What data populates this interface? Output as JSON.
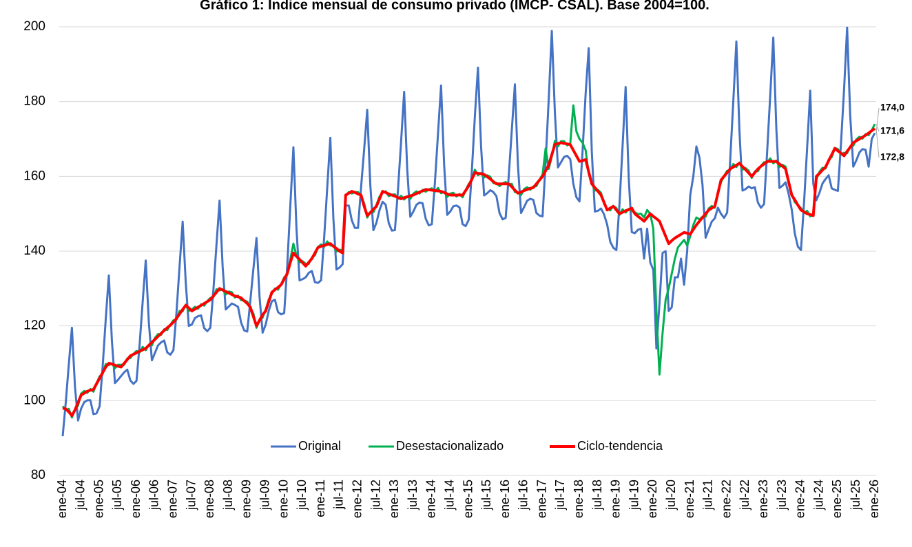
{
  "chart_data": {
    "type": "line",
    "title": "Gráfico 1: Índice mensual de consumo privado (IMCP- CSAL). Base 2004=100.",
    "categories": [
      "ene-04",
      null,
      null,
      null,
      null,
      null,
      "jul-04",
      null,
      null,
      null,
      null,
      null,
      "ene-05",
      null,
      null,
      null,
      null,
      null,
      "jul-05",
      null,
      null,
      null,
      null,
      null,
      "ene-06",
      null,
      null,
      null,
      null,
      null,
      "jul-06",
      null,
      null,
      null,
      null,
      null,
      "ene-07",
      null,
      null,
      null,
      null,
      null,
      "jul-07",
      null,
      null,
      null,
      null,
      null,
      "ene-08",
      null,
      null,
      null,
      null,
      null,
      "jul-08",
      null,
      null,
      null,
      null,
      null,
      "ene-09",
      null,
      null,
      null,
      null,
      null,
      "jul-09",
      null,
      null,
      null,
      null,
      null,
      "ene-10",
      null,
      null,
      null,
      null,
      null,
      "jul-10",
      null,
      null,
      null,
      null,
      null,
      "ene-11",
      null,
      null,
      null,
      null,
      null,
      "jul-11",
      null,
      null,
      null,
      null,
      null,
      "ene-12",
      null,
      null,
      null,
      null,
      null,
      "jul-12",
      null,
      null,
      null,
      null,
      null,
      "ene-13",
      null,
      null,
      null,
      null,
      null,
      "jul-13",
      null,
      null,
      null,
      null,
      null,
      "ene-14",
      null,
      null,
      null,
      null,
      null,
      "jul-14",
      null,
      null,
      null,
      null,
      null,
      "ene-15",
      null,
      null,
      null,
      null,
      null,
      "jul-15",
      null,
      null,
      null,
      null,
      null,
      "ene-16",
      null,
      null,
      null,
      null,
      null,
      "jul-16",
      null,
      null,
      null,
      null,
      null,
      "ene-17",
      null,
      null,
      null,
      null,
      null,
      "jul-17",
      null,
      null,
      null,
      null,
      null,
      "ene-18",
      null,
      null,
      null,
      null,
      null,
      "jul-18",
      null,
      null,
      null,
      null,
      null,
      "ene-19",
      null,
      null,
      null,
      null,
      null,
      "jul-19",
      null,
      null,
      null,
      null,
      null,
      "ene-20",
      null,
      null,
      null,
      null,
      null,
      "jul-20",
      null,
      null,
      null,
      null,
      null,
      "ene-21",
      null,
      null,
      null,
      null,
      null,
      "jul-21",
      null,
      null,
      null,
      null,
      null,
      "ene-22",
      null,
      null,
      null,
      null,
      null,
      "jul-22",
      null,
      null,
      null,
      null,
      null,
      "ene-23",
      null,
      null,
      null,
      null,
      null,
      "jul-23",
      null,
      null,
      null,
      null,
      null,
      "ene-24",
      null,
      null,
      null,
      null,
      null,
      "jul-24",
      null,
      null,
      null,
      null,
      null,
      "ene-25",
      null,
      null,
      null,
      null,
      null,
      "jul-25",
      null,
      null,
      null,
      null,
      null,
      "ene-26"
    ],
    "series": [
      {
        "name": "Original",
        "color": "#4472c4",
        "width": 3,
        "values": [
          90.5,
          99.5,
          109.8,
          119.5,
          103.7,
          94.7,
          97.9,
          99.6,
          100.1,
          100.1,
          96.4,
          96.6,
          98.5,
          109.2,
          121.8,
          133.5,
          116,
          104.7,
          105.6,
          106.6,
          107.6,
          108.3,
          105.4,
          104.5,
          105.3,
          114.9,
          126.4,
          137.5,
          121,
          110.8,
          112.8,
          114.8,
          115.6,
          116.1,
          112.9,
          112.3,
          113.5,
          123.7,
          136,
          147.9,
          131.7,
          120,
          120.4,
          122.1,
          122.6,
          122.8,
          119.4,
          118.6,
          119.5,
          129.7,
          141.8,
          153.5,
          135.8,
          124.4,
          125.2,
          126,
          125.6,
          125.1,
          120.9,
          118.8,
          118.5,
          126.7,
          135.3,
          143.5,
          127.7,
          118.2,
          120.4,
          124.1,
          126.6,
          127,
          123.7,
          123.1,
          123.4,
          136.1,
          152.2,
          167.8,
          146,
          132.2,
          132.5,
          133,
          134.2,
          134.7,
          131.7,
          131.5,
          132.2,
          143.6,
          157,
          170.3,
          148.7,
          135.1,
          135.6,
          136.5,
          152.2,
          152.2,
          148.2,
          146.2,
          146.2,
          157.1,
          167.2,
          177.8,
          157.7,
          145.6,
          147.6,
          151,
          153.2,
          152.4,
          147.5,
          145.5,
          145.6,
          156.4,
          169.2,
          182.6,
          161.9,
          149.2,
          150.6,
          152.4,
          153,
          152.8,
          148.7,
          146.9,
          147.2,
          158.3,
          171.3,
          184.3,
          163.1,
          149.7,
          150.6,
          152,
          152.2,
          151.7,
          147.2,
          146.7,
          148.4,
          161.3,
          176.2,
          189.1,
          168.1,
          154.9,
          155.5,
          156.3,
          155.8,
          154.7,
          150.2,
          148.5,
          148.9,
          160.1,
          172.4,
          184.6,
          162.9,
          150.2,
          151.8,
          153.5,
          154,
          153.7,
          150.2,
          149.5,
          149.3,
          164,
          180.6,
          198.9,
          177.1,
          162.4,
          163.8,
          165.2,
          165.5,
          164.6,
          158,
          154.4,
          153.3,
          166.7,
          182.1,
          194.3,
          166.6,
          150.6,
          150.8,
          151.4,
          149.8,
          147.1,
          142.5,
          140.9,
          140.3,
          152.5,
          168,
          183.9,
          159.7,
          145.1,
          144.8,
          145.7,
          146,
          138,
          146,
          137,
          135,
          114,
          126,
          139.5,
          140,
          124,
          125,
          133,
          133,
          138,
          131,
          140,
          155,
          160,
          168,
          165,
          157.6,
          143.6,
          145.8,
          147.9,
          148.8,
          151.6,
          150,
          148.9,
          150.3,
          164.5,
          180.1,
          196.1,
          172.1,
          156.2,
          156.6,
          157.3,
          156.8,
          157.1,
          153,
          151.6,
          152.6,
          166.5,
          181.6,
          197.1,
          172.6,
          156.9,
          157.5,
          158.4,
          155.3,
          151.1,
          144.7,
          141.2,
          140.3,
          153,
          167.6,
          182.9,
          158.1,
          153.6,
          155.6,
          158.1,
          159.3,
          160.3,
          156.8,
          156.4,
          156.1,
          168.7,
          183.1,
          199.8,
          176.4,
          162.6,
          164.3,
          166.4,
          167.3,
          167.1,
          162.6,
          170,
          171.6
        ]
      },
      {
        "name": "Desestacionalizado",
        "color": "#00b050",
        "width": 3,
        "values": [
          98.5,
          97.5,
          97.8,
          95.5,
          97.7,
          98.7,
          101.9,
          102.6,
          102.1,
          103.1,
          102.4,
          104.6,
          106.5,
          107.2,
          109.8,
          109.5,
          110,
          108.7,
          109.6,
          109.6,
          109.6,
          111.3,
          111.4,
          112.5,
          113.3,
          112.9,
          114.4,
          113.5,
          115,
          114.8,
          116.8,
          117.8,
          117.6,
          119.1,
          118.9,
          120.3,
          121.5,
          121.7,
          124,
          123.9,
          125.7,
          124,
          124.4,
          125.1,
          124.6,
          125.8,
          125.4,
          126.6,
          127.5,
          127.7,
          129.8,
          129.5,
          129.8,
          128.4,
          129.2,
          129,
          127.6,
          128.1,
          126.9,
          126.8,
          126.5,
          124.7,
          123.3,
          119.5,
          121.7,
          122.2,
          124.4,
          127.1,
          128.6,
          130,
          129.7,
          131.1,
          133,
          133.7,
          137.8,
          142,
          138.8,
          137,
          137.3,
          136.6,
          136.6,
          138.3,
          138.9,
          141.1,
          141.8,
          141.2,
          142.6,
          141.5,
          141.5,
          139.9,
          140.4,
          140.1,
          154.6,
          155.8,
          155.4,
          155.8,
          155.8,
          154.7,
          152.8,
          149,
          150.5,
          150.4,
          152.4,
          154.6,
          155.6,
          156,
          154.7,
          155.1,
          155.2,
          154,
          154.8,
          153.8,
          154.7,
          154,
          155.4,
          156,
          155.4,
          156.4,
          155.9,
          156.5,
          156.8,
          155.9,
          156.9,
          155.5,
          155.9,
          154.5,
          155.4,
          155.6,
          154.6,
          155.3,
          154.4,
          156.3,
          158,
          158.9,
          161.8,
          160.3,
          160.9,
          159.7,
          160.3,
          159.9,
          158.2,
          158.3,
          157.4,
          158.1,
          158.5,
          157.7,
          158,
          155.8,
          155.7,
          155,
          156.6,
          157.1,
          156.4,
          157.3,
          157.4,
          159.1,
          160.5,
          167.5,
          162,
          165.3,
          169.5,
          168,
          169.4,
          169.4,
          168.3,
          168.8,
          179,
          172,
          170,
          169,
          167,
          160.7,
          158.2,
          156.2,
          156.4,
          155.6,
          152.6,
          151.3,
          150.9,
          152.1,
          151.5,
          149.7,
          151.2,
          150.3,
          151.3,
          150.7,
          150.4,
          149.9,
          150,
          149,
          151,
          150,
          146,
          124,
          107,
          118,
          127,
          130,
          134,
          138,
          141,
          142,
          143,
          141.5,
          144,
          147,
          149,
          148.5,
          149.2,
          149.2,
          151.4,
          152.1,
          151.6,
          155.8,
          158.4,
          160.1,
          161.5,
          161.7,
          163.3,
          162.5,
          163.7,
          161.8,
          162.2,
          161.5,
          159.6,
          161.3,
          161.4,
          162.8,
          163.8,
          163.7,
          164.8,
          163.5,
          164.2,
          162.5,
          163.1,
          162.6,
          158.1,
          155.3,
          153.1,
          152.4,
          151.5,
          150.2,
          150.8,
          149.3,
          149.7,
          159.2,
          161.2,
          162.3,
          162.1,
          164.5,
          165.2,
          167.6,
          167.3,
          165.9,
          166.3,
          166.2,
          168,
          168.2,
          169.9,
          170.6,
          170.1,
          171.3,
          171,
          172.3,
          174.0
        ]
      },
      {
        "name": "Ciclo-tendencia",
        "color": "#ff0000",
        "width": 4,
        "values": [
          98,
          97.8,
          97,
          96,
          97.5,
          99.5,
          101.5,
          102,
          102.5,
          102.8,
          103,
          104.5,
          106,
          107.5,
          109,
          110,
          109.8,
          109.5,
          109.2,
          109,
          110,
          111,
          112,
          112.4,
          112.8,
          113.2,
          113.6,
          114,
          114.8,
          115.6,
          116.4,
          117.2,
          118,
          118.8,
          119.5,
          120.2,
          121,
          122,
          123.2,
          124.4,
          125.5,
          124.8,
          124,
          124.5,
          125,
          125.5,
          126,
          126.5,
          127,
          128,
          129,
          130,
          129.6,
          129.2,
          128.8,
          128.4,
          128,
          127.8,
          127.5,
          126.7,
          126,
          125,
          122.5,
          120,
          121.5,
          123,
          124,
          126.5,
          129,
          129.7,
          130.3,
          131,
          132.5,
          134,
          137,
          139.5,
          138.6,
          137.8,
          136.9,
          136,
          137,
          138,
          139.5,
          141,
          141.3,
          141.5,
          141.8,
          142,
          141.3,
          140.7,
          140,
          139.5,
          155,
          155.5,
          156,
          155.7,
          155.3,
          155,
          152,
          149.5,
          150.3,
          151.2,
          152,
          154,
          156,
          155.7,
          155.3,
          155,
          154.7,
          154.3,
          154,
          154.3,
          154.5,
          154.8,
          155,
          155.4,
          155.8,
          156.1,
          156.5,
          156.4,
          156.3,
          156.2,
          156.1,
          156,
          155.7,
          155.3,
          155,
          155,
          155,
          155,
          155,
          156.2,
          157.5,
          159.2,
          161,
          160.8,
          160.7,
          160.5,
          159.9,
          159.3,
          158.6,
          158,
          158,
          158,
          158,
          158,
          157.2,
          156.3,
          155.5,
          155.8,
          156.2,
          156.5,
          156.8,
          157,
          158,
          159,
          160,
          161.5,
          163,
          165.8,
          168.5,
          168.8,
          169,
          168.8,
          168.7,
          168.5,
          167,
          165.5,
          164,
          164.2,
          164.5,
          161.2,
          158,
          157,
          156,
          155,
          153,
          151,
          151.5,
          152,
          151,
          150,
          150.4,
          150.8,
          151.1,
          151.5,
          150,
          149.3,
          148.7,
          148,
          149,
          150,
          149.3,
          148.7,
          148,
          146,
          144,
          142,
          142.8,
          143.5,
          144,
          144.5,
          145,
          144.8,
          144.5,
          145.8,
          147,
          148,
          149,
          150,
          151,
          151.5,
          152,
          155.5,
          159,
          160,
          161,
          162,
          162.5,
          163,
          163.5,
          162.6,
          161.8,
          160.9,
          160,
          161,
          162,
          162.7,
          163.3,
          164,
          164,
          164,
          164,
          163.3,
          162.7,
          162,
          158.5,
          155,
          153.7,
          152.3,
          151,
          150.5,
          150,
          149.8,
          149.5,
          160,
          160.8,
          161.7,
          162.5,
          164.2,
          165.8,
          167.5,
          166.8,
          166.2,
          165.5,
          166.7,
          167.8,
          169,
          169.5,
          170,
          170.5,
          171,
          171.6,
          172.2,
          172.8
        ]
      }
    ],
    "annotations": [
      {
        "text": "174,0",
        "color": "#5b8a35"
      },
      {
        "text": "171,6",
        "color": "#2e75b6"
      },
      {
        "text": "172,8",
        "color": "#e02020"
      }
    ],
    "ylim": [
      80,
      200
    ],
    "yticks": [
      80,
      100,
      120,
      140,
      160,
      180,
      200
    ],
    "grid": true,
    "legend": "bottom-center"
  }
}
